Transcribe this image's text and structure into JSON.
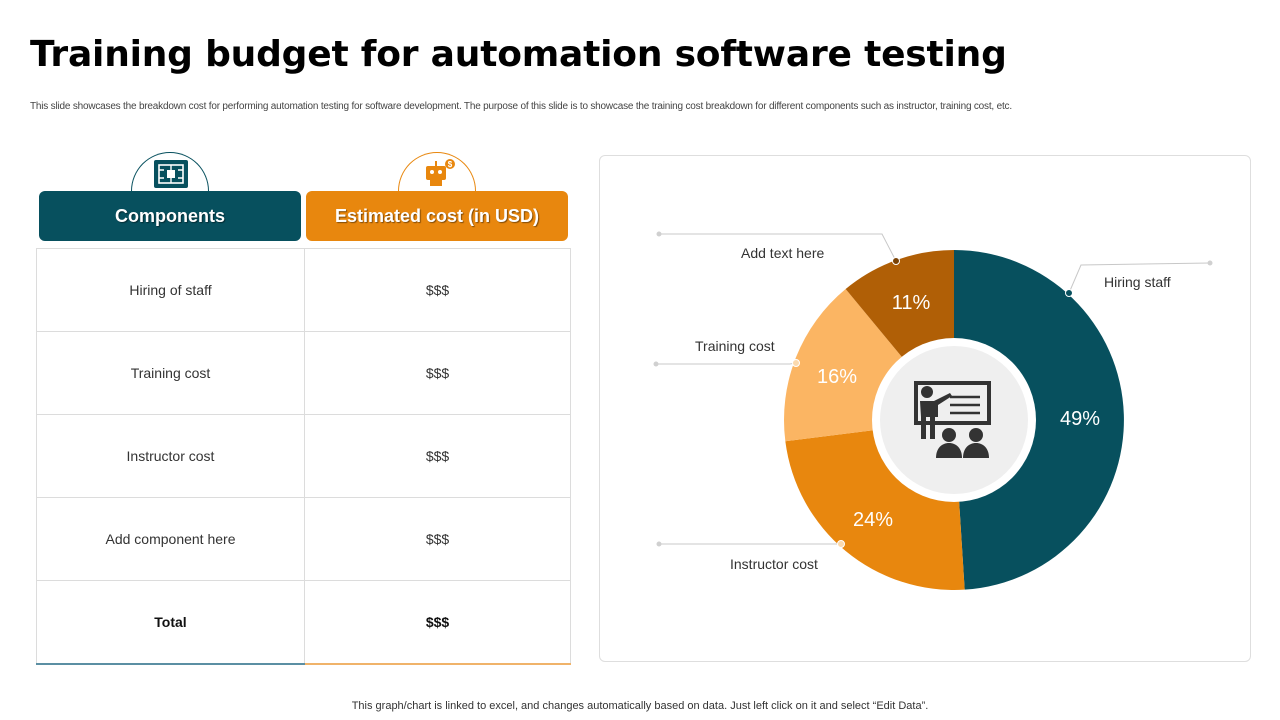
{
  "title": "Training budget for automation software testing",
  "subtitle": "This slide showcases the breakdown cost for performing automation testing for software development. The purpose of this slide is to showcase the training cost breakdown for different components such as instructor, training cost, etc.",
  "table": {
    "headers": [
      "Components",
      "Estimated cost (in USD)"
    ],
    "rows": [
      [
        "Hiring of staff",
        "$$$"
      ],
      [
        "Training cost",
        "$$$"
      ],
      [
        "Instructor cost",
        "$$$"
      ],
      [
        "Add component here",
        "$$$"
      ],
      [
        "Total",
        "$$$"
      ]
    ],
    "icons": [
      "circuit-board-icon",
      "robot-money-icon"
    ]
  },
  "chart_data": {
    "type": "pie",
    "title": "",
    "center_icon": "presentation-classroom-icon",
    "slices": [
      {
        "label": "Hiring staff",
        "value": 49,
        "display": "49%",
        "color": "#07505e"
      },
      {
        "label": "Instructor cost",
        "value": 24,
        "display": "24%",
        "color": "#e8870e"
      },
      {
        "label": "Training cost",
        "value": 16,
        "display": "16%",
        "color": "#fbb563"
      },
      {
        "label": "Add text here",
        "value": 11,
        "display": "11%",
        "color": "#b05f06"
      }
    ]
  },
  "footnote": "This graph/chart is linked to excel, and changes automatically based on data. Just left click on it and select “Edit Data”."
}
